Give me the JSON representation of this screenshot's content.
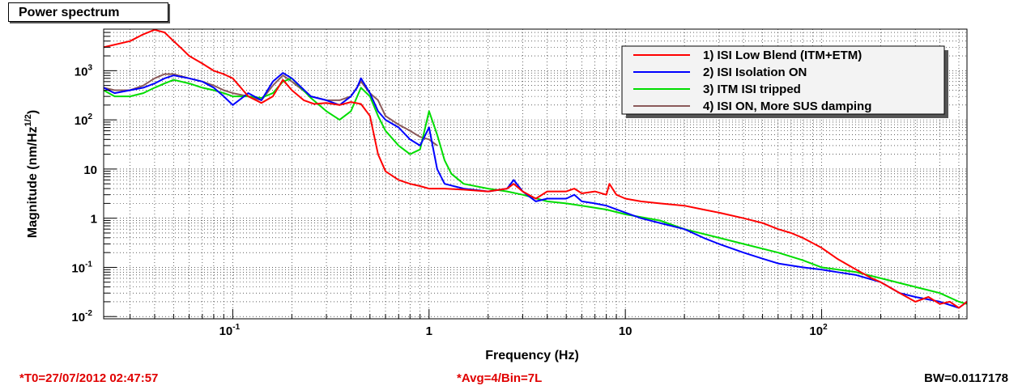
{
  "title": "Power spectrum",
  "footer": {
    "t0": "*T0=27/07/2012 02:47:57",
    "avg": "*Avg=4/Bin=7L",
    "bw": "BW=0.0117178"
  },
  "chart_data": {
    "type": "line",
    "xlabel": "Frequency (Hz)",
    "ylabel": "Magnitude (nm/Hz^{1/2})",
    "xscale": "log",
    "yscale": "log",
    "xlim": [
      0.022,
      550
    ],
    "ylim": [
      0.009,
      7000
    ],
    "grid": true,
    "legend_position": "top-right",
    "x_ticks": [
      {
        "value": 0.1,
        "label": "10",
        "sup": "-1"
      },
      {
        "value": 1,
        "label": "1",
        "sup": ""
      },
      {
        "value": 10,
        "label": "10",
        "sup": ""
      },
      {
        "value": 100,
        "label": "10",
        "sup": "2"
      }
    ],
    "y_ticks": [
      {
        "value": 0.01,
        "label": "10",
        "sup": "-2"
      },
      {
        "value": 0.1,
        "label": "10",
        "sup": "-1"
      },
      {
        "value": 1,
        "label": "1",
        "sup": ""
      },
      {
        "value": 10,
        "label": "10",
        "sup": ""
      },
      {
        "value": 100,
        "label": "10",
        "sup": "2"
      },
      {
        "value": 1000,
        "label": "10",
        "sup": "3"
      }
    ],
    "series": [
      {
        "name": "1) ISI Low Blend (ITM+ETM)",
        "color": "#ff0000",
        "x": [
          0.022,
          0.03,
          0.035,
          0.04,
          0.045,
          0.05,
          0.055,
          0.06,
          0.07,
          0.08,
          0.09,
          0.1,
          0.11,
          0.12,
          0.14,
          0.16,
          0.18,
          0.2,
          0.23,
          0.26,
          0.3,
          0.35,
          0.4,
          0.45,
          0.5,
          0.55,
          0.6,
          0.7,
          0.8,
          0.9,
          1.0,
          1.2,
          1.5,
          2.0,
          2.5,
          2.7,
          3.0,
          3.5,
          4,
          5,
          5.5,
          6,
          7,
          8,
          8.3,
          9,
          10,
          12,
          15,
          20,
          25,
          30,
          40,
          50,
          60,
          70,
          80,
          100,
          120,
          150,
          180,
          200,
          250,
          300,
          350,
          400,
          450,
          500,
          550
        ],
        "y": [
          3000,
          4000,
          5500,
          6800,
          6000,
          4000,
          2800,
          2000,
          1400,
          1000,
          850,
          700,
          450,
          300,
          220,
          300,
          650,
          400,
          250,
          210,
          220,
          200,
          230,
          210,
          120,
          20,
          9,
          6,
          5,
          4.5,
          4,
          4,
          3.8,
          3.5,
          4,
          5,
          3.5,
          2.5,
          3.5,
          3.5,
          4,
          3.2,
          3.5,
          3,
          5,
          3,
          2.5,
          2.2,
          2,
          1.8,
          1.5,
          1.3,
          1,
          0.8,
          0.6,
          0.5,
          0.4,
          0.25,
          0.15,
          0.09,
          0.06,
          0.05,
          0.03,
          0.02,
          0.025,
          0.018,
          0.02,
          0.015,
          0.02
        ]
      },
      {
        "name": "2) ISI Isolation ON",
        "color": "#0000ff",
        "x": [
          0.022,
          0.025,
          0.03,
          0.035,
          0.04,
          0.045,
          0.05,
          0.06,
          0.07,
          0.08,
          0.09,
          0.1,
          0.12,
          0.14,
          0.16,
          0.18,
          0.2,
          0.25,
          0.3,
          0.35,
          0.4,
          0.43,
          0.45,
          0.5,
          0.55,
          0.6,
          0.7,
          0.8,
          0.9,
          1.0,
          1.1,
          1.2,
          1.5,
          2.0,
          2.5,
          2.7,
          3.0,
          3.5,
          4,
          5,
          5.5,
          6,
          7,
          8,
          10,
          12,
          15,
          20,
          25,
          30,
          40,
          50,
          60,
          80,
          100,
          120,
          150,
          200,
          250,
          300,
          400,
          500,
          550
        ],
        "y": [
          450,
          350,
          400,
          450,
          550,
          700,
          800,
          700,
          600,
          450,
          300,
          200,
          350,
          250,
          600,
          900,
          700,
          300,
          250,
          200,
          300,
          450,
          700,
          350,
          150,
          100,
          70,
          40,
          30,
          70,
          10,
          5,
          4,
          3.5,
          4,
          6,
          3.5,
          2.2,
          2.5,
          2.5,
          3,
          2.2,
          2,
          1.8,
          1.3,
          1,
          0.8,
          0.6,
          0.4,
          0.3,
          0.2,
          0.15,
          0.12,
          0.1,
          0.09,
          0.08,
          0.07,
          0.05,
          0.03,
          0.025,
          0.02,
          0.015,
          0.02
        ]
      },
      {
        "name": "3) ITM ISI tripped",
        "color": "#00dd00",
        "x": [
          0.022,
          0.025,
          0.03,
          0.035,
          0.04,
          0.045,
          0.05,
          0.06,
          0.07,
          0.08,
          0.09,
          0.1,
          0.12,
          0.14,
          0.16,
          0.18,
          0.2,
          0.25,
          0.3,
          0.35,
          0.4,
          0.45,
          0.5,
          0.55,
          0.6,
          0.7,
          0.8,
          0.9,
          1.0,
          1.1,
          1.2,
          1.3,
          1.5,
          2.0,
          2.5,
          3.0,
          4,
          5,
          6,
          8,
          10,
          15,
          20,
          30,
          40,
          60,
          80,
          100,
          150,
          200,
          300,
          400,
          500,
          550
        ],
        "y": [
          400,
          300,
          300,
          350,
          450,
          550,
          650,
          550,
          450,
          400,
          350,
          300,
          300,
          280,
          350,
          600,
          700,
          280,
          150,
          100,
          150,
          450,
          300,
          120,
          60,
          30,
          20,
          25,
          150,
          50,
          15,
          8,
          5,
          4,
          3.5,
          3,
          2.2,
          2,
          1.8,
          1.5,
          1.2,
          0.9,
          0.6,
          0.4,
          0.3,
          0.2,
          0.14,
          0.1,
          0.08,
          0.06,
          0.04,
          0.03,
          0.02,
          0.018
        ]
      },
      {
        "name": "4) ISI ON, More SUS damping",
        "color": "#8b5a5a",
        "x": [
          0.022,
          0.025,
          0.03,
          0.035,
          0.04,
          0.045,
          0.05,
          0.06,
          0.07,
          0.08,
          0.09,
          0.1,
          0.12,
          0.14,
          0.16,
          0.18,
          0.2,
          0.25,
          0.3,
          0.35,
          0.4,
          0.45,
          0.5,
          0.55,
          0.6,
          0.7,
          0.8,
          0.9,
          1.0,
          1.1
        ],
        "y": [
          450,
          400,
          400,
          500,
          700,
          850,
          850,
          700,
          600,
          500,
          400,
          350,
          300,
          250,
          500,
          800,
          600,
          300,
          250,
          250,
          300,
          600,
          350,
          250,
          120,
          80,
          60,
          45,
          40,
          30
        ]
      }
    ]
  }
}
